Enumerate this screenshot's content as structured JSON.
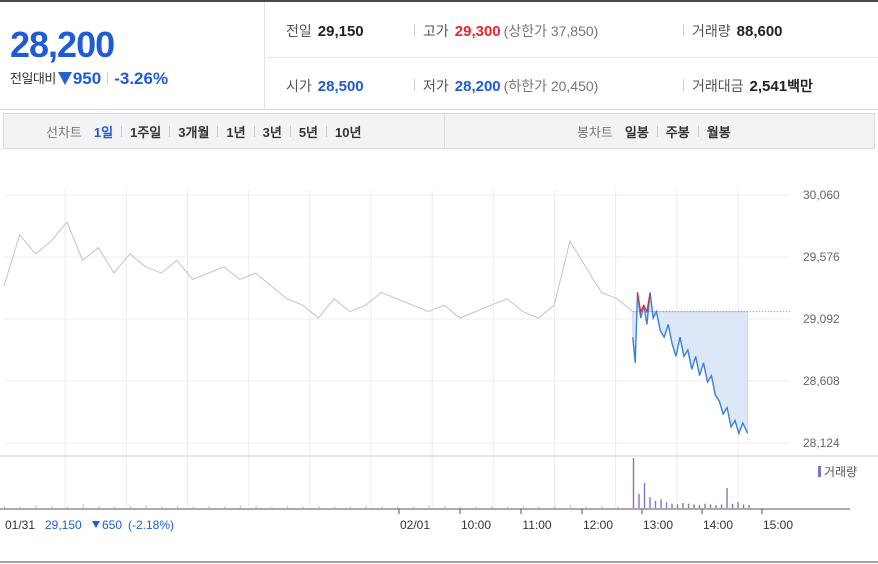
{
  "summary": {
    "current_price": "28,200",
    "change_label": "전일대비",
    "change_amount": "950",
    "change_rate": "-3.26%",
    "prev_close": {
      "label": "전일",
      "value": "29,150"
    },
    "high": {
      "label": "고가",
      "value": "29,300",
      "sub": "(상한가 37,850)"
    },
    "volume": {
      "label": "거래량",
      "value": "88,600"
    },
    "open": {
      "label": "시가",
      "value": "28,500"
    },
    "low": {
      "label": "저가",
      "value": "28,200",
      "sub": "(하한가 20,450)"
    },
    "trade_value": {
      "label": "거래대금",
      "value": "2,541",
      "unit": "백만"
    }
  },
  "tabs": {
    "line_label": "선차트",
    "line_tabs": [
      "1일",
      "1주일",
      "3개월",
      "1년",
      "3년",
      "5년",
      "10년"
    ],
    "line_active": 0,
    "candle_label": "봉차트",
    "candle_tabs": [
      "일봉",
      "주봉",
      "월봉"
    ]
  },
  "colors": {
    "price_blue": "#1f5bd8",
    "price_red": "#e8252c",
    "prev_day_line": "#c4c4c4",
    "today_line": "#3d7fd9",
    "fill": "#dce8f8",
    "volume_today": "#8a6fc4",
    "volume_prev": "#c6c6c6"
  },
  "chart_data": {
    "type": "line",
    "y_ticks": [
      "30,060",
      "29,576",
      "29,092",
      "28,608",
      "28,124"
    ],
    "ylim": [
      28124,
      30060
    ],
    "x_ticks": [
      "02/01",
      "10:00",
      "11:00",
      "12:00",
      "13:00",
      "14:00",
      "15:00"
    ],
    "reference_price": 29150,
    "footer": {
      "date": "01/31",
      "price": "29,150",
      "change": "650",
      "rate": "(-2.18%)"
    },
    "volume_legend": "거래량",
    "series": [
      {
        "points": [
          [
            0,
            29350
          ],
          [
            2,
            29750
          ],
          [
            4,
            29600
          ],
          [
            6,
            29700
          ],
          [
            8,
            29850
          ],
          [
            10,
            29550
          ],
          [
            12,
            29650
          ],
          [
            14,
            29450
          ],
          [
            16,
            29600
          ],
          [
            18,
            29500
          ],
          [
            20,
            29450
          ],
          [
            22,
            29550
          ],
          [
            24,
            29400
          ],
          [
            26,
            29450
          ],
          [
            28,
            29500
          ],
          [
            30,
            29400
          ],
          [
            32,
            29450
          ],
          [
            34,
            29350
          ],
          [
            36,
            29250
          ],
          [
            38,
            29200
          ],
          [
            40,
            29100
          ],
          [
            42,
            29250
          ],
          [
            44,
            29150
          ],
          [
            46,
            29200
          ],
          [
            48,
            29300
          ],
          [
            50,
            29250
          ],
          [
            52,
            29200
          ],
          [
            54,
            29150
          ],
          [
            56,
            29200
          ],
          [
            58,
            29100
          ],
          [
            60,
            29150
          ],
          [
            62,
            29200
          ],
          [
            64,
            29250
          ],
          [
            66,
            29150
          ],
          [
            68,
            29100
          ],
          [
            70,
            29200
          ],
          [
            72,
            29700
          ],
          [
            74,
            29500
          ],
          [
            76,
            29300
          ],
          [
            78,
            29250
          ],
          [
            80,
            29150
          ]
        ]
      },
      {
        "points": [
          [
            80,
            28950
          ],
          [
            80.3,
            28750
          ],
          [
            80.6,
            29300
          ],
          [
            81,
            29100
          ],
          [
            81.4,
            29200
          ],
          [
            81.8,
            29050
          ],
          [
            82.2,
            29300
          ],
          [
            82.6,
            29100
          ],
          [
            83,
            29150
          ],
          [
            83.5,
            29000
          ],
          [
            84,
            28950
          ],
          [
            84.5,
            29050
          ],
          [
            85,
            28900
          ],
          [
            85.5,
            28800
          ],
          [
            86,
            28950
          ],
          [
            86.5,
            28800
          ],
          [
            87,
            28850
          ],
          [
            87.5,
            28700
          ],
          [
            88,
            28800
          ],
          [
            88.5,
            28650
          ],
          [
            89,
            28750
          ],
          [
            89.5,
            28600
          ],
          [
            90,
            28650
          ],
          [
            90.5,
            28500
          ],
          [
            91,
            28450
          ],
          [
            91.5,
            28350
          ],
          [
            92,
            28400
          ],
          [
            92.5,
            28250
          ],
          [
            93,
            28300
          ],
          [
            93.5,
            28200
          ],
          [
            94,
            28280
          ],
          [
            94.6,
            28200
          ]
        ]
      }
    ],
    "volume": {
      "prev_day": [
        3,
        2,
        4,
        3,
        2,
        5,
        3,
        2,
        3,
        4,
        2,
        3,
        2,
        3,
        2,
        4,
        3,
        2,
        3,
        2,
        3,
        2,
        2,
        3,
        2,
        3,
        2,
        4,
        3,
        2,
        2,
        3,
        2,
        3,
        2,
        3,
        4,
        2,
        3,
        2,
        3
      ],
      "today": [
        70,
        20,
        35,
        15,
        10,
        12,
        8,
        6,
        5,
        7,
        6,
        5,
        4,
        6,
        5,
        4,
        5,
        28,
        6,
        8,
        5,
        4
      ]
    }
  }
}
